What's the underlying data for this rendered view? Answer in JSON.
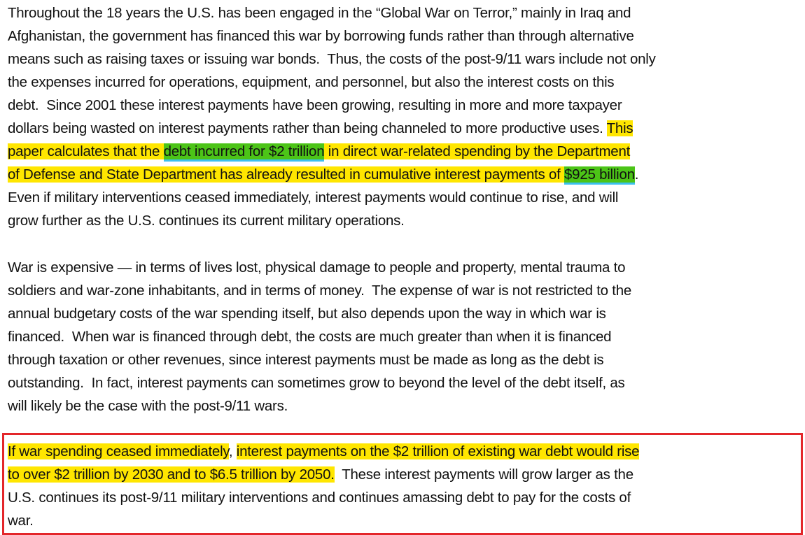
{
  "colors": {
    "highlight_yellow": "#ffe600",
    "highlight_green": "#4cc417",
    "box_border": "#e3262a"
  },
  "paragraphs": [
    {
      "lines": [
        [
          {
            "t": "Throughout the 18 years the U.S. has been engaged in the “Global War on Terror,” mainly in Iraq and",
            "h": ""
          }
        ],
        [
          {
            "t": "Afghanistan, the government has financed this war by borrowing funds rather than through alternative",
            "h": ""
          }
        ],
        [
          {
            "t": "means such as raising taxes or issuing war bonds.  Thus, the costs of the post-9/11 wars include not only",
            "h": ""
          }
        ],
        [
          {
            "t": "the expenses incurred for operations, equipment, and personnel, but also the interest costs on this",
            "h": ""
          }
        ],
        [
          {
            "t": "debt.  Since 2001 these interest payments have been growing, resulting in more and more taxpayer",
            "h": ""
          }
        ],
        [
          {
            "t": "dollars being wasted on interest payments rather than being channeled to more productive uses. ",
            "h": ""
          },
          {
            "t": "This",
            "h": "yellow"
          }
        ],
        [
          {
            "t": "paper calculates that the ",
            "h": "yellow"
          },
          {
            "t": "debt incurred for $2 trillion",
            "h": "green"
          },
          {
            "t": " in direct war-related spending by the Department",
            "h": "yellow"
          }
        ],
        [
          {
            "t": "of Defense and State Department has already resulted in cumulative interest payments of ",
            "h": "yellow"
          },
          {
            "t": "$925 billion",
            "h": "green"
          },
          {
            "t": ".",
            "h": ""
          }
        ],
        [
          {
            "t": "Even if military interventions ceased immediately, interest payments would continue to rise, and will",
            "h": ""
          }
        ],
        [
          {
            "t": "grow further as the U.S. continues its current military operations.",
            "h": ""
          }
        ]
      ]
    },
    {
      "lines": [
        [
          {
            "t": "War is expensive — in terms of lives lost, physical damage to people and property, mental trauma to",
            "h": ""
          }
        ],
        [
          {
            "t": "soldiers and war-zone inhabitants, and in terms of money.  The expense of war is not restricted to the",
            "h": ""
          }
        ],
        [
          {
            "t": "annual budgetary costs of the war spending itself, but also depends upon the way in which war is",
            "h": ""
          }
        ],
        [
          {
            "t": "financed.  When war is financed through debt, the costs are much greater than when it is financed",
            "h": ""
          }
        ],
        [
          {
            "t": "through taxation or other revenues, since interest payments must be made as long as the debt is",
            "h": ""
          }
        ],
        [
          {
            "t": "outstanding.  In fact, interest payments can sometimes grow to beyond the level of the debt itself, as",
            "h": ""
          }
        ],
        [
          {
            "t": "will likely be the case with the post-9/11 wars.",
            "h": ""
          }
        ]
      ]
    },
    {
      "lines": [
        [
          {
            "t": "If war spending ceased immediately",
            "h": "yellow"
          },
          {
            "t": ", ",
            "h": ""
          },
          {
            "t": "interest payments on the $2 trillion of existing war debt would rise",
            "h": "yellow"
          }
        ],
        [
          {
            "t": "to over $2 trillion by 2030 and to $6.5 trillion by 2050.",
            "h": "yellow"
          },
          {
            "t": "  These interest payments will grow larger as the",
            "h": ""
          }
        ],
        [
          {
            "t": "U.S. continues its post-9/11 military interventions and continues amassing debt to pay for the costs of",
            "h": ""
          }
        ],
        [
          {
            "t": "war.",
            "h": ""
          }
        ]
      ]
    }
  ]
}
